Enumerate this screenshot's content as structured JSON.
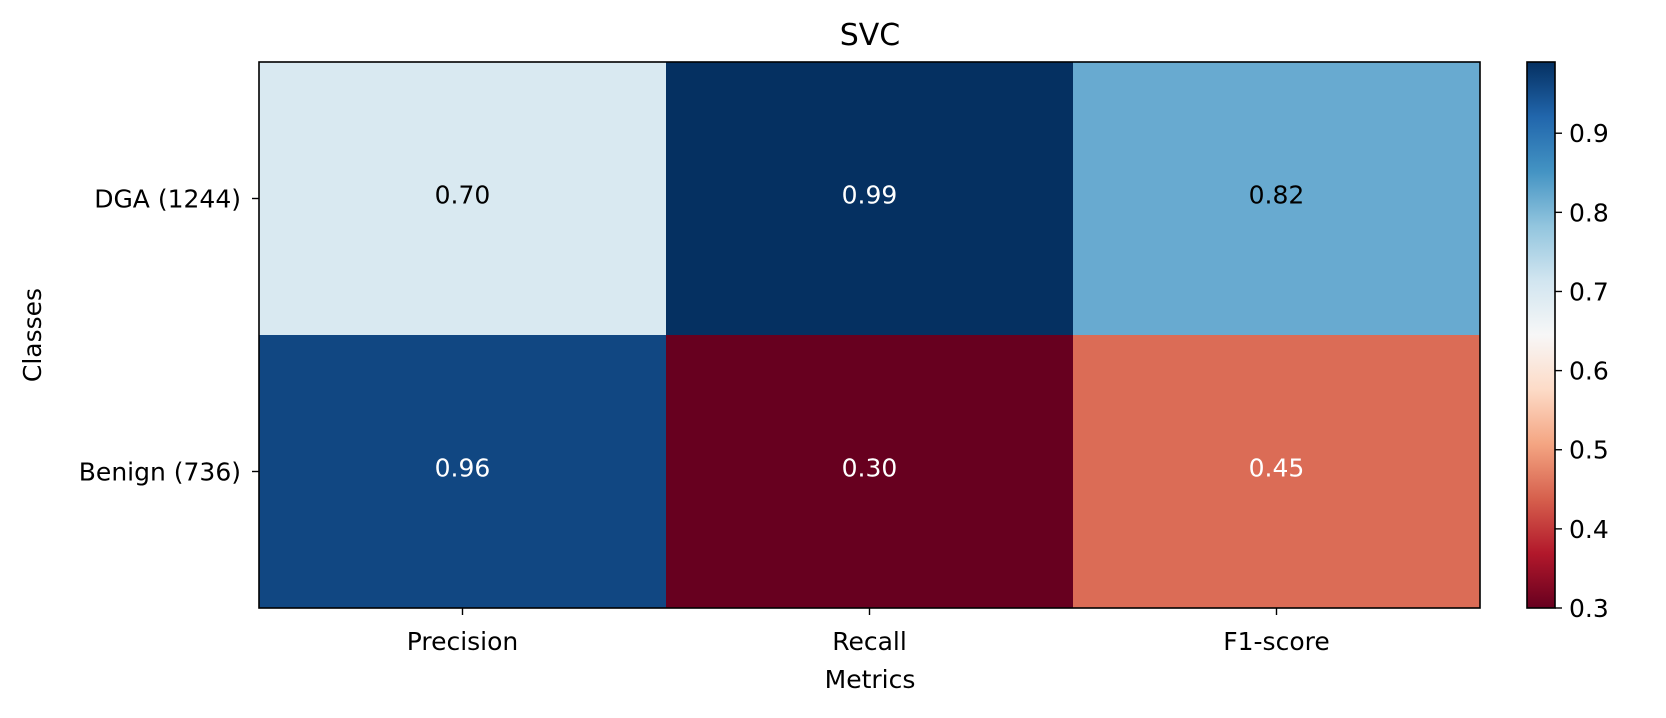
{
  "chart_data": {
    "type": "heatmap",
    "title": "SVC",
    "xlabel": "Metrics",
    "ylabel": "Classes",
    "x_categories": [
      "Precision",
      "Recall",
      "F1-score"
    ],
    "y_categories": [
      "DGA (1244)",
      "Benign (736)"
    ],
    "values": [
      [
        0.7,
        0.99,
        0.82
      ],
      [
        0.96,
        0.3,
        0.45
      ]
    ],
    "value_labels": [
      [
        "0.70",
        "0.99",
        "0.82"
      ],
      [
        "0.96",
        "0.30",
        "0.45"
      ]
    ],
    "colorbar": {
      "colormap": "RdBu",
      "range": [
        0.3,
        0.99
      ],
      "ticks": [
        0.3,
        0.4,
        0.5,
        0.6,
        0.7,
        0.8,
        0.9
      ],
      "tick_labels": [
        "0.3",
        "0.4",
        "0.5",
        "0.6",
        "0.7",
        "0.8",
        "0.9"
      ]
    },
    "colors": {
      "label_on_light": "#000000",
      "label_on_dark": "#ffffff"
    }
  }
}
